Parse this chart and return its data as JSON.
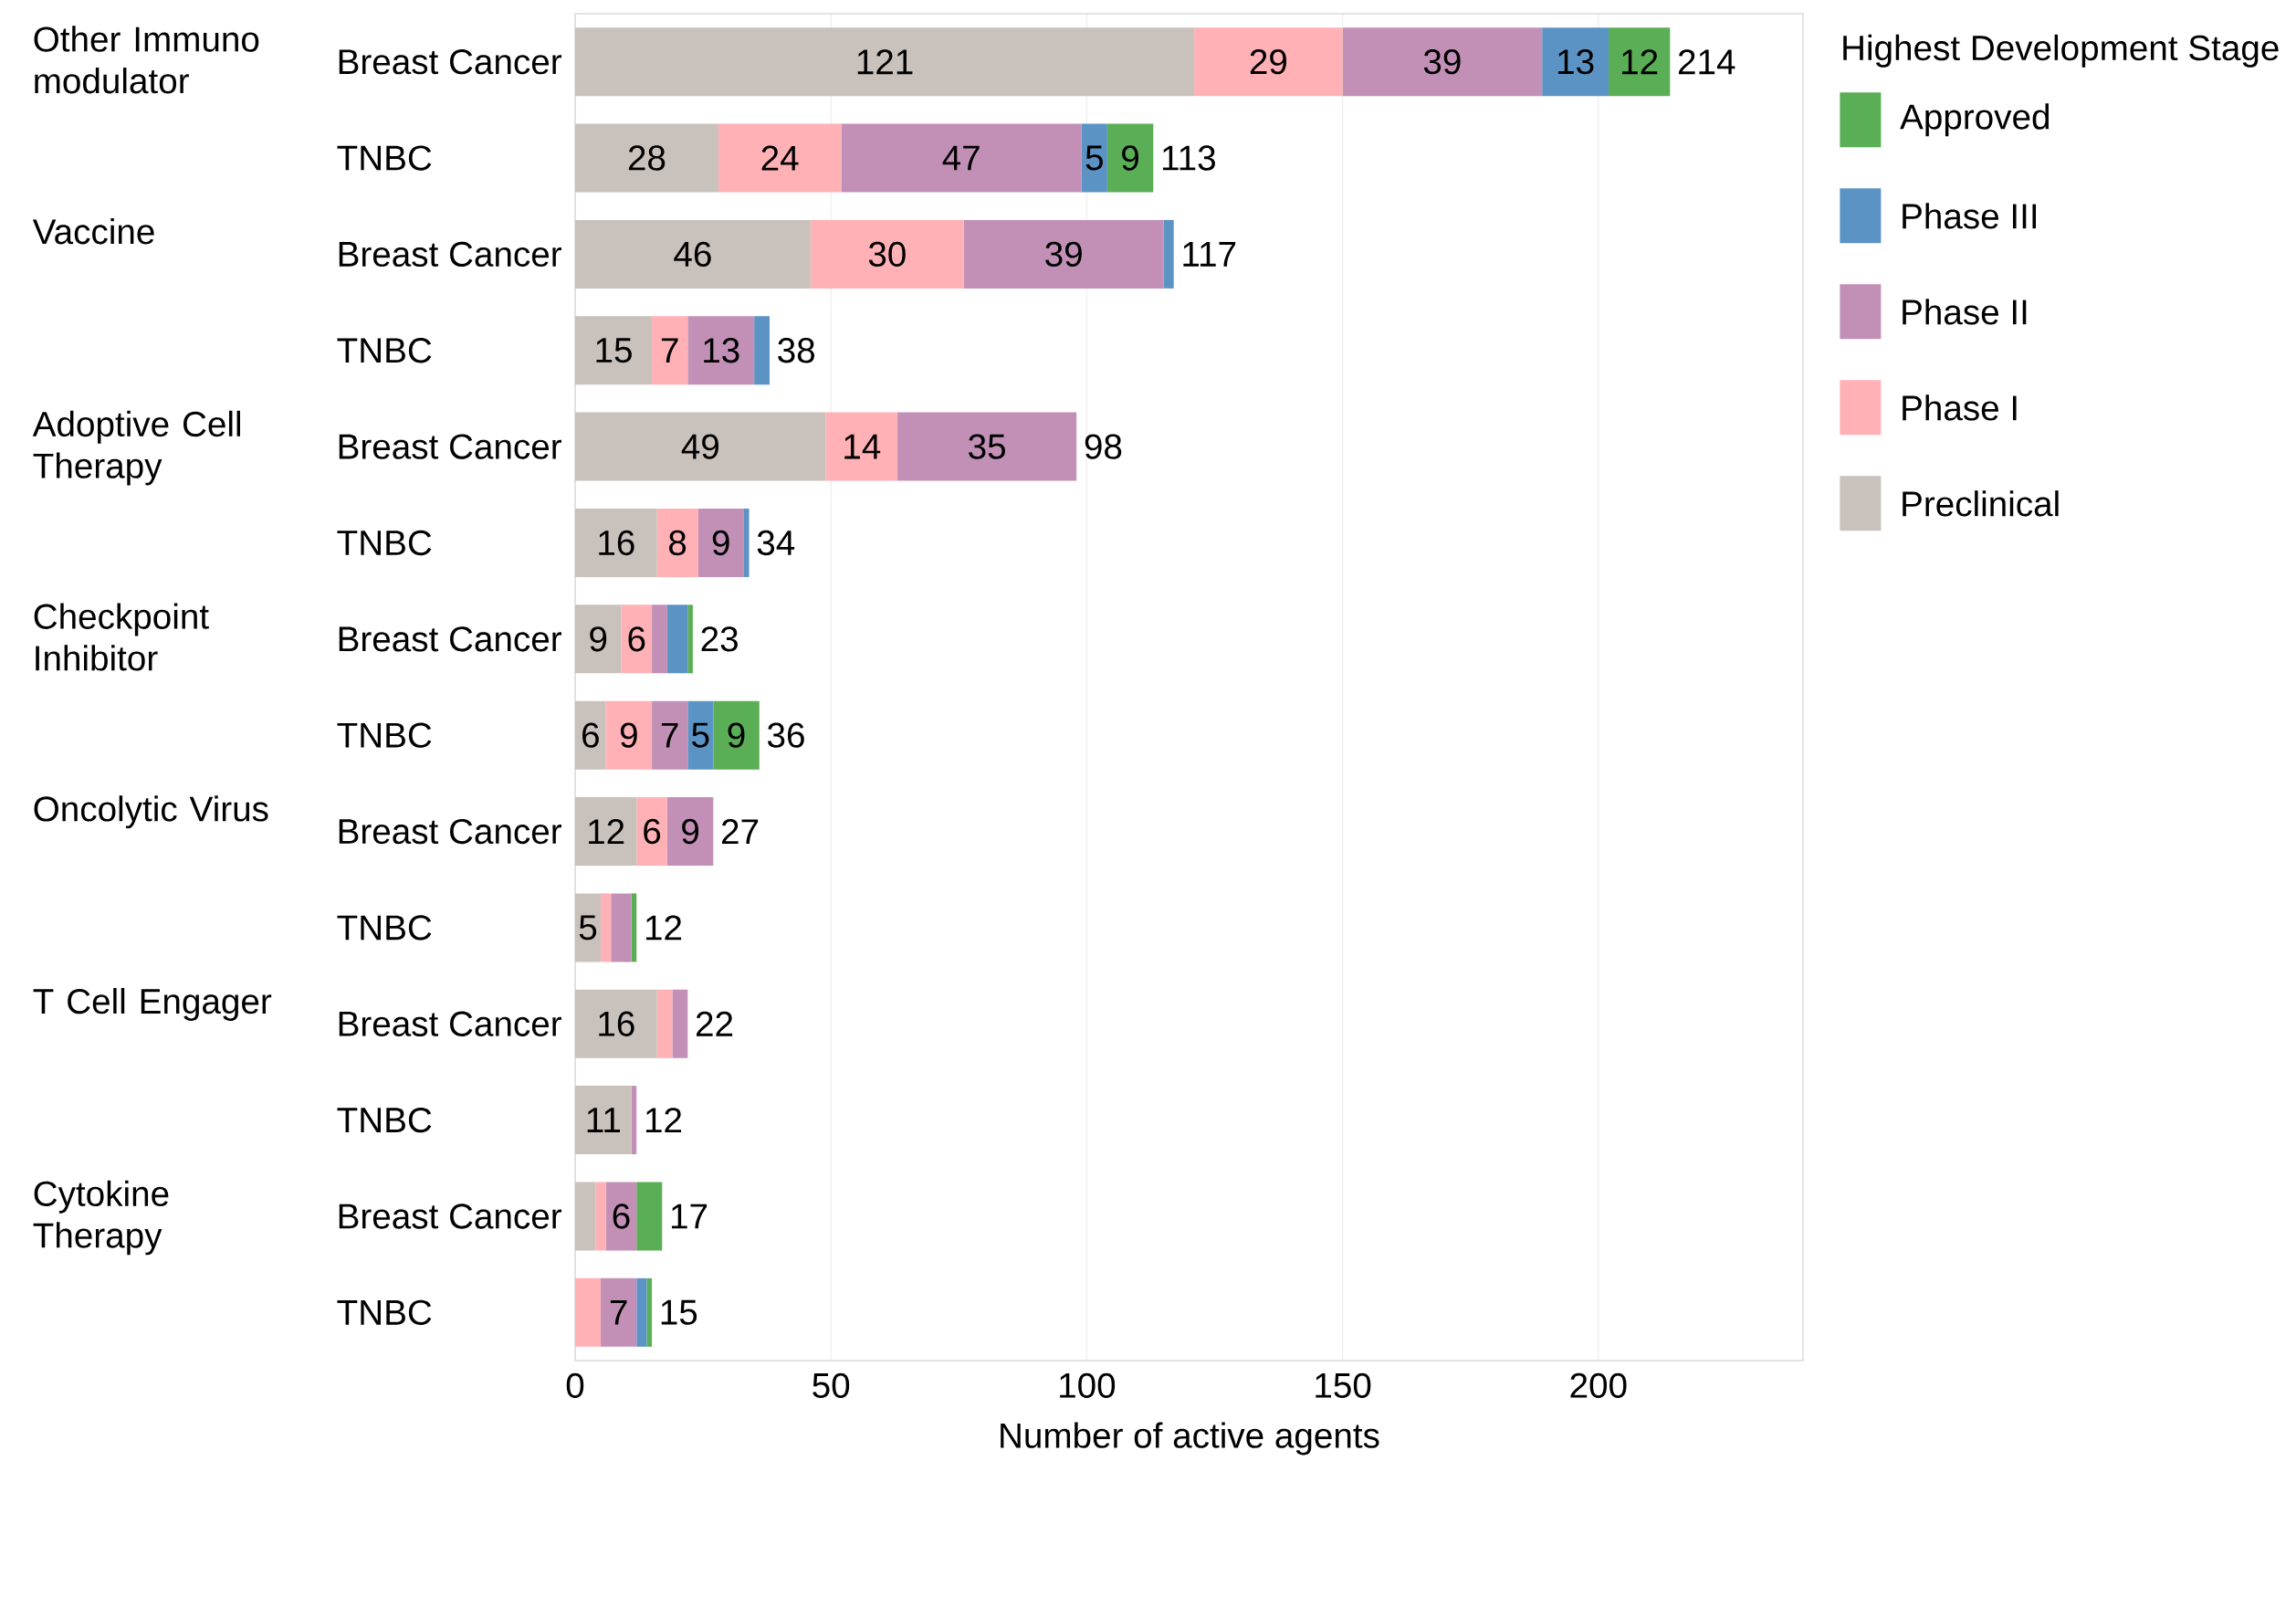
{
  "chart_data": {
    "type": "bar",
    "orientation": "horizontal",
    "stacked": true,
    "xlabel": "Number of active agents",
    "legend_title": "Highest Development Stage",
    "categories": [
      "Breast Cancer",
      "TNBC",
      "Breast Cancer",
      "TNBC",
      "Breast Cancer",
      "TNBC",
      "Breast Cancer",
      "TNBC",
      "Breast Cancer",
      "TNBC",
      "Breast Cancer",
      "TNBC",
      "Breast Cancer",
      "TNBC"
    ],
    "annotations": [
      "Other Immuno modulator",
      "Vaccine",
      "Adoptive Cell Therapy",
      "Checkpoint Inhibitor",
      "Oncolytic Virus",
      "T Cell Engager",
      "Cytokine Therapy"
    ],
    "series": [
      {
        "name": "Preclinical",
        "color": "#c9c1bc",
        "values": [
          121,
          28,
          46,
          15,
          49,
          16,
          9,
          6,
          12,
          5,
          16,
          11,
          4,
          0
        ],
        "value_labels": [
          "121",
          "28",
          "46",
          "15",
          "49",
          "16",
          "9",
          "6",
          "12",
          "5",
          "16",
          "11",
          null,
          null
        ]
      },
      {
        "name": "Phase I",
        "color": "#ffb1b6",
        "values": [
          29,
          24,
          30,
          7,
          14,
          8,
          6,
          9,
          6,
          2,
          3,
          0,
          2,
          5
        ],
        "value_labels": [
          "29",
          "24",
          "30",
          "7",
          "14",
          "8",
          "6",
          "9",
          "6",
          null,
          null,
          null,
          null,
          null
        ]
      },
      {
        "name": "Phase II",
        "color": "#c290b6",
        "values": [
          39,
          47,
          39,
          13,
          35,
          9,
          3,
          7,
          9,
          4,
          3,
          1,
          6,
          7
        ],
        "value_labels": [
          "39",
          "47",
          "39",
          "13",
          "35",
          "9",
          null,
          "7",
          "9",
          null,
          null,
          null,
          "6",
          "7"
        ]
      },
      {
        "name": "Phase III",
        "color": "#5b93c5",
        "values": [
          13,
          5,
          2,
          3,
          0,
          1,
          4,
          5,
          0,
          0,
          0,
          0,
          0,
          2
        ],
        "value_labels": [
          "13",
          "5",
          null,
          null,
          null,
          null,
          null,
          "5",
          null,
          null,
          null,
          null,
          null,
          null
        ]
      },
      {
        "name": "Approved",
        "color": "#5aae55",
        "values": [
          12,
          9,
          0,
          0,
          0,
          0,
          1,
          9,
          0,
          1,
          0,
          0,
          5,
          1
        ],
        "value_labels": [
          "12",
          "9",
          null,
          null,
          null,
          null,
          null,
          "9",
          null,
          null,
          null,
          null,
          null,
          null
        ]
      }
    ],
    "totals": [
      "214",
      "113",
      "117",
      "38",
      "98",
      "34",
      "23",
      "36",
      "27",
      "12",
      "22",
      "12",
      "17",
      "15"
    ],
    "xlim": [
      0,
      240
    ],
    "xticks": [
      0,
      50,
      100,
      150,
      200
    ],
    "grid": "x",
    "legend": "top right"
  }
}
